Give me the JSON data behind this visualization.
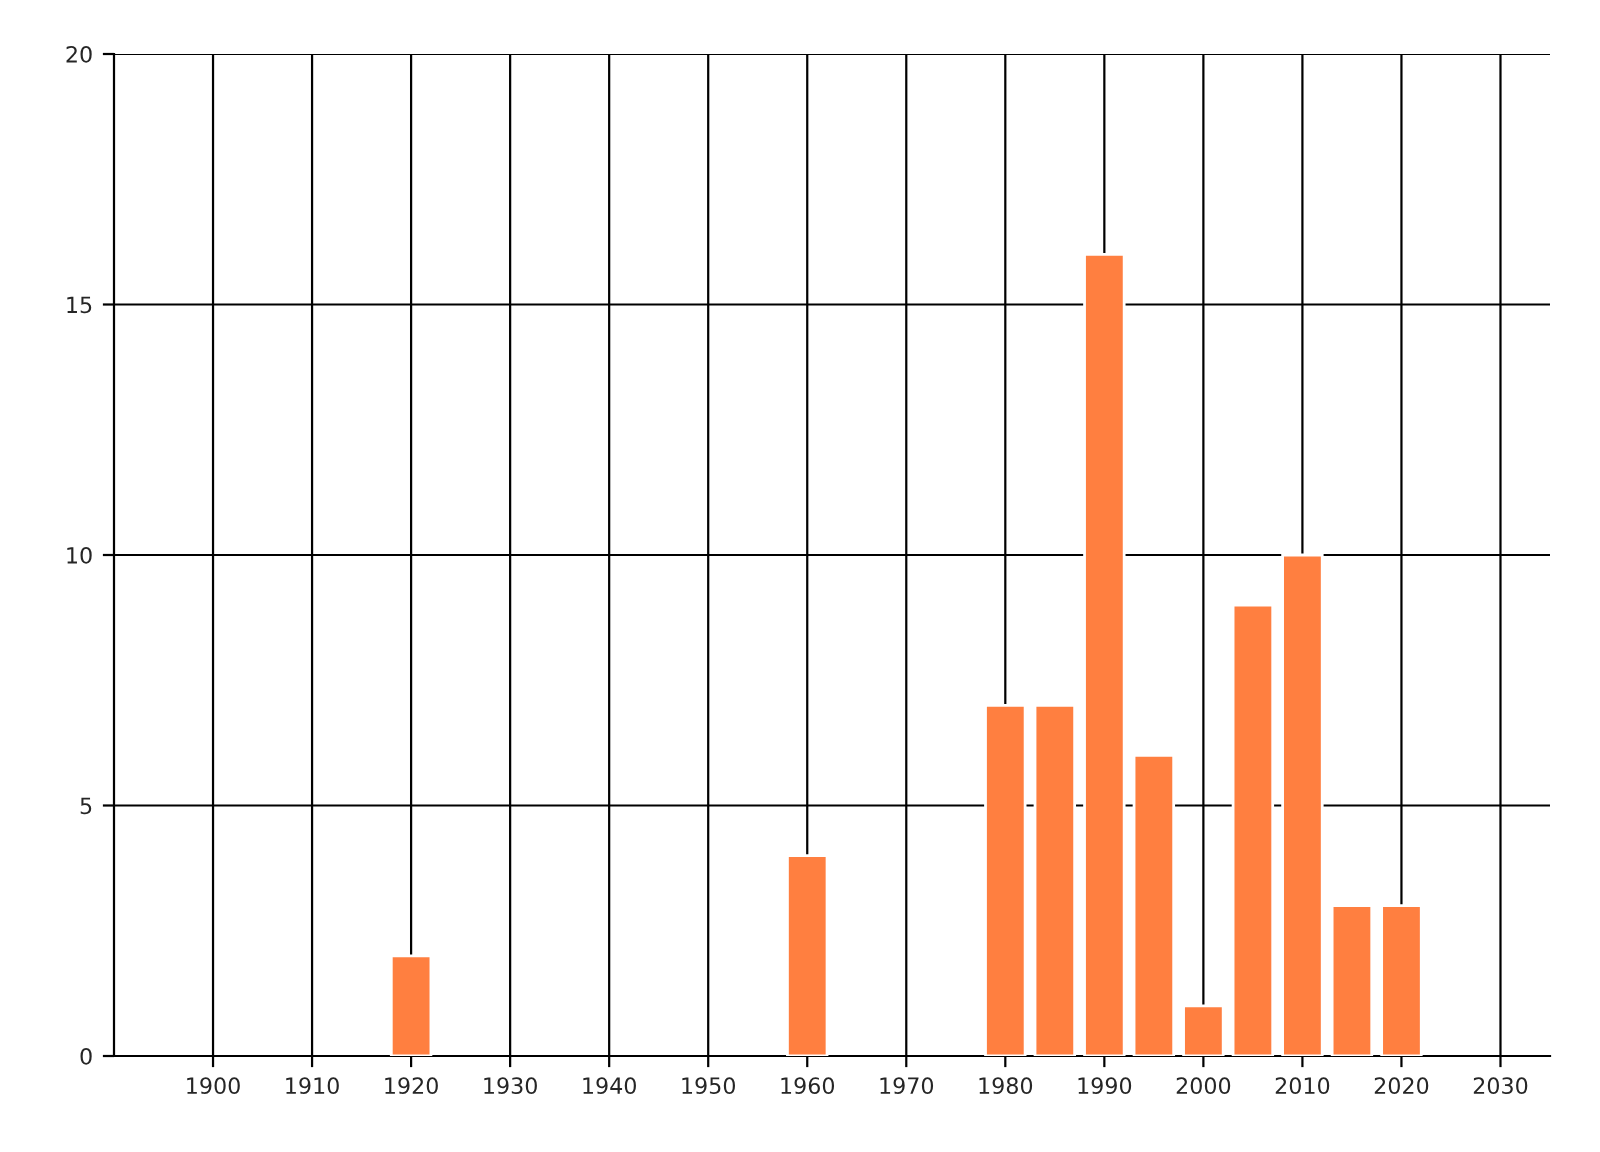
{
  "chart_data": {
    "type": "bar",
    "x": [
      1920,
      1960,
      1980,
      1985,
      1990,
      1995,
      2000,
      2005,
      2010,
      2015,
      2020
    ],
    "values": [
      2,
      4,
      7,
      7,
      16,
      6,
      1,
      9,
      10,
      3,
      3
    ],
    "color": "#ff7f40",
    "xlim": [
      1890,
      2035
    ],
    "xticks": [
      1900,
      1910,
      1920,
      1930,
      1940,
      1950,
      1960,
      1970,
      1980,
      1990,
      2000,
      2010,
      2020,
      2030
    ],
    "ylim": [
      0,
      20
    ],
    "yticks": [
      0,
      5,
      10,
      15,
      20
    ],
    "grid": true
  }
}
